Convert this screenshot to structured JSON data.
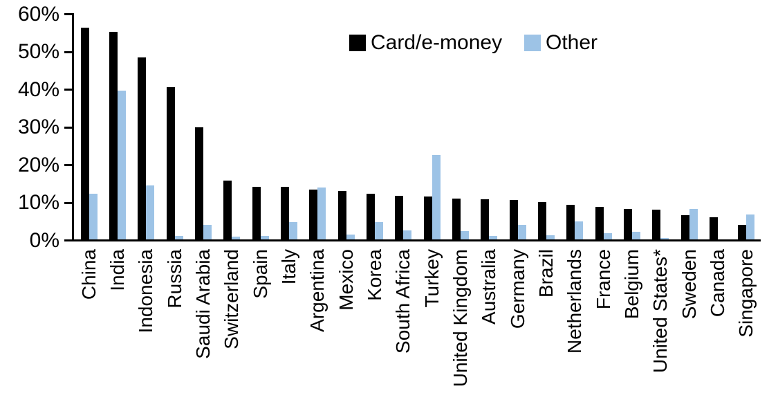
{
  "chart_data": {
    "type": "bar",
    "title": "",
    "xlabel": "",
    "ylabel": "",
    "ylim": [
      0,
      60
    ],
    "ytick_labels": [
      "0%",
      "10%",
      "20%",
      "30%",
      "40%",
      "50%",
      "60%"
    ],
    "grid": "off",
    "legend_position": "top-center",
    "value_format": "percent",
    "categories": [
      "China",
      "India",
      "Indonesia",
      "Russia",
      "Saudi Arabia",
      "Switzerland",
      "Spain",
      "Italy",
      "Argentina",
      "Mexico",
      "Korea",
      "South Africa",
      "Turkey",
      "United Kingdom",
      "Australia",
      "Germany",
      "Brazil",
      "Netherlands",
      "France",
      "Belgium",
      "United States*",
      "Sweden",
      "Canada",
      "Singapore"
    ],
    "series": [
      {
        "name": "Card/e-money",
        "color": "#000000",
        "values": [
          56.2,
          55.0,
          48.2,
          40.4,
          29.7,
          15.6,
          14.0,
          13.9,
          13.3,
          12.8,
          12.1,
          11.6,
          11.4,
          10.9,
          10.6,
          10.5,
          10.0,
          9.2,
          8.6,
          8.1,
          7.8,
          6.5,
          5.9,
          3.8
        ]
      },
      {
        "name": "Other",
        "color": "#9DC3E6",
        "values": [
          12.2,
          39.5,
          14.4,
          1.0,
          3.9,
          0.8,
          1.0,
          4.6,
          13.7,
          1.3,
          4.5,
          2.3,
          22.4,
          2.2,
          1.0,
          3.9,
          1.1,
          4.8,
          1.6,
          2.0,
          0.3,
          8.0,
          0.0,
          6.6
        ]
      }
    ]
  }
}
